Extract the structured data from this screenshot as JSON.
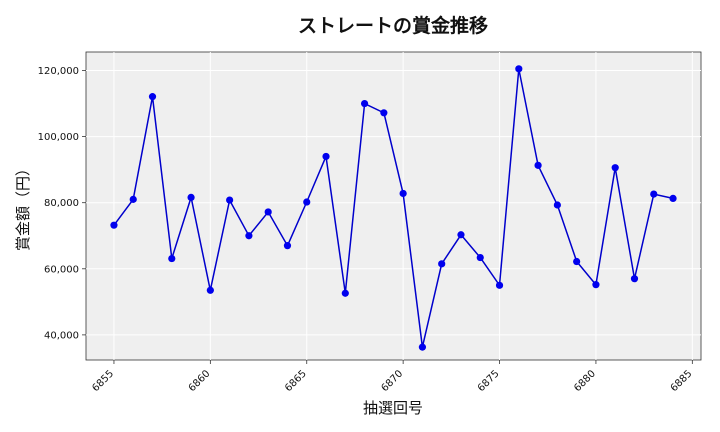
{
  "chart_data": {
    "type": "line",
    "title": "ストレートの賞金推移",
    "xlabel": "抽選回号",
    "ylabel": "賞金額（円）",
    "xlim": [
      6853.55,
      6885.45
    ],
    "ylim": [
      32400,
      125600
    ],
    "xticks": [
      6855,
      6860,
      6865,
      6870,
      6875,
      6880,
      6885
    ],
    "yticks": [
      40000,
      60000,
      80000,
      100000,
      120000
    ],
    "ytick_labels": [
      "40,000",
      "60,000",
      "80,000",
      "100,000",
      "120,000"
    ],
    "grid": true,
    "series": [
      {
        "color": "#0000cc",
        "marker_color": "#0000ee",
        "x": [
          6855,
          6856,
          6857,
          6858,
          6859,
          6860,
          6861,
          6862,
          6863,
          6864,
          6865,
          6866,
          6867,
          6868,
          6869,
          6870,
          6871,
          6872,
          6873,
          6874,
          6875,
          6876,
          6877,
          6878,
          6879,
          6880,
          6881,
          6882,
          6883,
          6884
        ],
        "values": [
          73200,
          81000,
          112100,
          63100,
          81600,
          53500,
          80800,
          70000,
          77200,
          67000,
          80200,
          94000,
          52600,
          110000,
          107200,
          82800,
          36300,
          61500,
          70300,
          63400,
          55000,
          120500,
          91300,
          79300,
          62200,
          55200,
          90600,
          57000,
          82600,
          81300
        ]
      }
    ]
  }
}
